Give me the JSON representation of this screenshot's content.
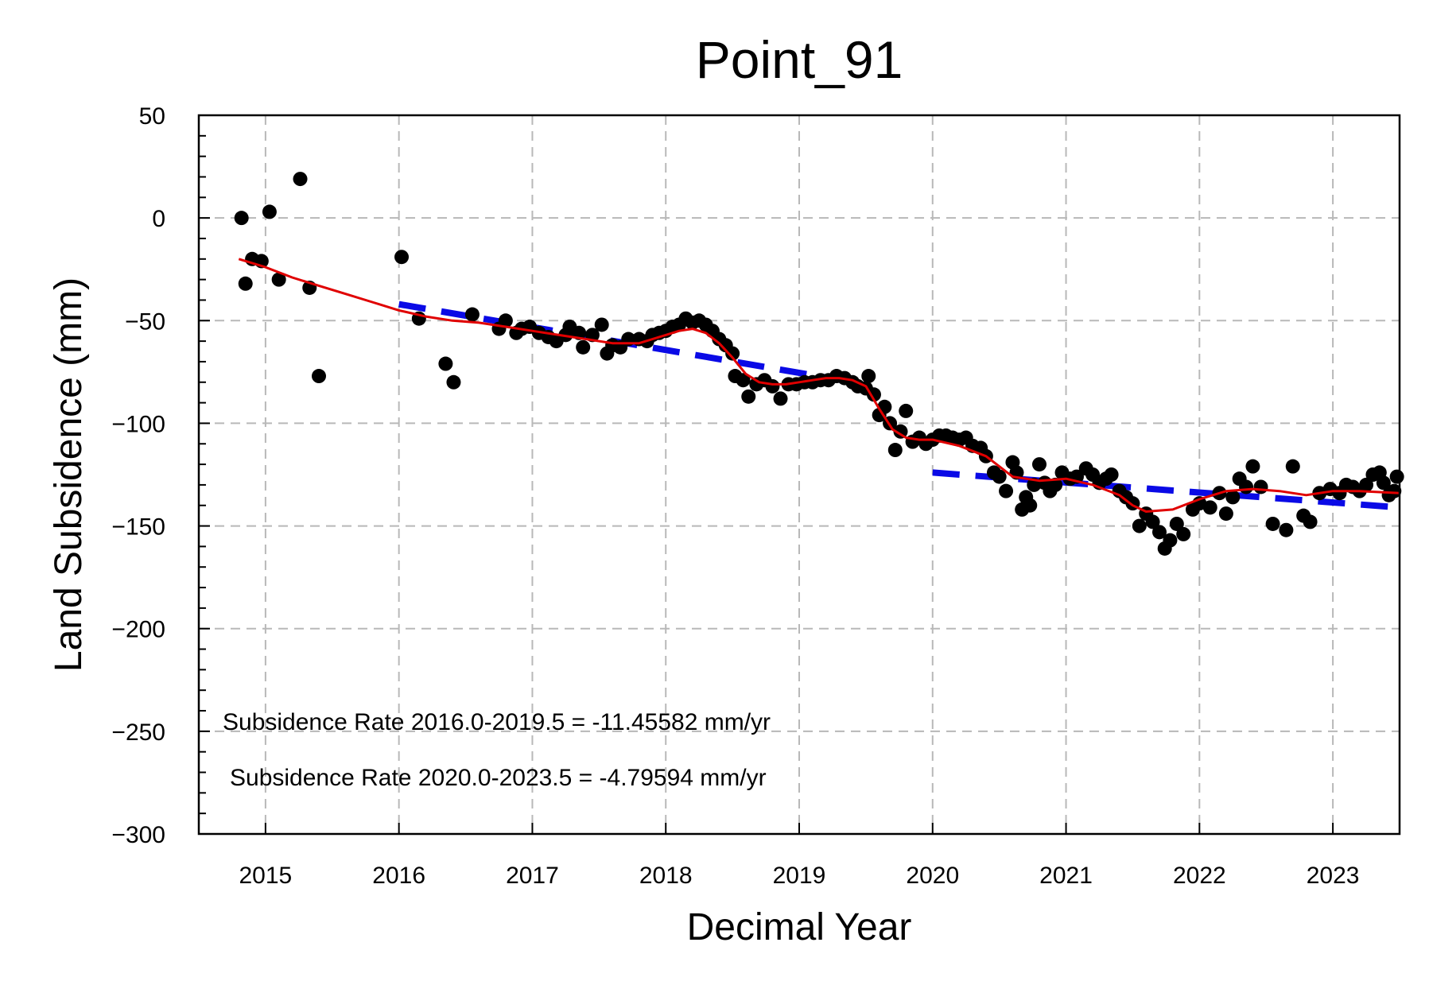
{
  "chart_data": {
    "type": "scatter",
    "title": "Point_91",
    "xlabel": "Decimal Year",
    "ylabel": "Land Subsidence (mm)",
    "xlim": [
      2014.5,
      2023.5
    ],
    "ylim": [
      -300,
      50
    ],
    "grid": true,
    "x_ticks": [
      2015,
      2016,
      2017,
      2018,
      2019,
      2020,
      2021,
      2022,
      2023
    ],
    "x_tick_labels": [
      "2015",
      "2016",
      "2017",
      "2018",
      "2019",
      "2020",
      "2021",
      "2022",
      "2023"
    ],
    "y_ticks": [
      50,
      0,
      -50,
      -100,
      -150,
      -200,
      -250,
      -300
    ],
    "y_tick_labels": [
      "50",
      "0",
      "−50",
      "−100",
      "−150",
      "−200",
      "−250",
      "−300"
    ],
    "annotations": [
      "Subsidence Rate 2016.0-2019.5 = -11.45582 mm/yr",
      "Subsidence Rate 2020.0-2023.5 = -4.79594 mm/yr"
    ],
    "colors": {
      "points": "#000000",
      "smooth": "#e00000",
      "trend": "#0a0ae6"
    },
    "points": [
      [
        2014.82,
        0
      ],
      [
        2014.85,
        -32
      ],
      [
        2014.9,
        -20
      ],
      [
        2014.97,
        -21
      ],
      [
        2015.03,
        3
      ],
      [
        2015.1,
        -30
      ],
      [
        2015.26,
        19
      ],
      [
        2015.33,
        -34
      ],
      [
        2015.4,
        -77
      ],
      [
        2016.02,
        -19
      ],
      [
        2016.15,
        -49
      ],
      [
        2016.35,
        -71
      ],
      [
        2016.41,
        -80
      ],
      [
        2016.55,
        -47
      ],
      [
        2016.75,
        -54
      ],
      [
        2016.8,
        -50
      ],
      [
        2016.88,
        -56
      ],
      [
        2016.92,
        -54
      ],
      [
        2016.98,
        -53
      ],
      [
        2017.05,
        -56
      ],
      [
        2017.12,
        -58
      ],
      [
        2017.18,
        -60
      ],
      [
        2017.25,
        -57
      ],
      [
        2017.28,
        -53
      ],
      [
        2017.35,
        -56
      ],
      [
        2017.38,
        -63
      ],
      [
        2017.45,
        -57
      ],
      [
        2017.52,
        -52
      ],
      [
        2017.56,
        -66
      ],
      [
        2017.6,
        -62
      ],
      [
        2017.66,
        -63
      ],
      [
        2017.72,
        -59
      ],
      [
        2017.8,
        -59
      ],
      [
        2017.86,
        -60
      ],
      [
        2017.9,
        -57
      ],
      [
        2017.95,
        -56
      ],
      [
        2018.0,
        -55
      ],
      [
        2018.05,
        -53
      ],
      [
        2018.1,
        -52
      ],
      [
        2018.15,
        -49
      ],
      [
        2018.2,
        -51
      ],
      [
        2018.25,
        -50
      ],
      [
        2018.3,
        -52
      ],
      [
        2018.35,
        -55
      ],
      [
        2018.4,
        -59
      ],
      [
        2018.45,
        -62
      ],
      [
        2018.5,
        -66
      ],
      [
        2018.52,
        -77
      ],
      [
        2018.58,
        -79
      ],
      [
        2018.62,
        -87
      ],
      [
        2018.68,
        -81
      ],
      [
        2018.74,
        -79
      ],
      [
        2018.8,
        -82
      ],
      [
        2018.86,
        -88
      ],
      [
        2018.92,
        -81
      ],
      [
        2018.98,
        -81
      ],
      [
        2019.04,
        -80
      ],
      [
        2019.1,
        -80
      ],
      [
        2019.16,
        -79
      ],
      [
        2019.22,
        -79
      ],
      [
        2019.28,
        -77
      ],
      [
        2019.34,
        -78
      ],
      [
        2019.4,
        -80
      ],
      [
        2019.44,
        -82
      ],
      [
        2019.5,
        -83
      ],
      [
        2019.52,
        -77
      ],
      [
        2019.56,
        -86
      ],
      [
        2019.6,
        -96
      ],
      [
        2019.64,
        -92
      ],
      [
        2019.68,
        -100
      ],
      [
        2019.72,
        -113
      ],
      [
        2019.76,
        -104
      ],
      [
        2019.8,
        -94
      ],
      [
        2019.85,
        -109
      ],
      [
        2019.9,
        -107
      ],
      [
        2019.95,
        -110
      ],
      [
        2020.0,
        -108
      ],
      [
        2020.05,
        -106
      ],
      [
        2020.1,
        -106
      ],
      [
        2020.15,
        -107
      ],
      [
        2020.2,
        -108
      ],
      [
        2020.25,
        -107
      ],
      [
        2020.3,
        -111
      ],
      [
        2020.36,
        -112
      ],
      [
        2020.4,
        -116
      ],
      [
        2020.46,
        -124
      ],
      [
        2020.5,
        -126
      ],
      [
        2020.55,
        -133
      ],
      [
        2020.6,
        -119
      ],
      [
        2020.63,
        -124
      ],
      [
        2020.67,
        -142
      ],
      [
        2020.7,
        -136
      ],
      [
        2020.73,
        -140
      ],
      [
        2020.76,
        -130
      ],
      [
        2020.8,
        -120
      ],
      [
        2020.84,
        -129
      ],
      [
        2020.88,
        -133
      ],
      [
        2020.92,
        -130
      ],
      [
        2020.97,
        -124
      ],
      [
        2021.03,
        -127
      ],
      [
        2021.08,
        -126
      ],
      [
        2021.15,
        -122
      ],
      [
        2021.2,
        -125
      ],
      [
        2021.25,
        -129
      ],
      [
        2021.3,
        -127
      ],
      [
        2021.34,
        -125
      ],
      [
        2021.4,
        -133
      ],
      [
        2021.45,
        -136
      ],
      [
        2021.5,
        -139
      ],
      [
        2021.55,
        -150
      ],
      [
        2021.6,
        -144
      ],
      [
        2021.65,
        -148
      ],
      [
        2021.7,
        -153
      ],
      [
        2021.74,
        -161
      ],
      [
        2021.78,
        -157
      ],
      [
        2021.83,
        -149
      ],
      [
        2021.88,
        -154
      ],
      [
        2021.95,
        -142
      ],
      [
        2022.0,
        -139
      ],
      [
        2022.08,
        -141
      ],
      [
        2022.15,
        -134
      ],
      [
        2022.2,
        -144
      ],
      [
        2022.25,
        -136
      ],
      [
        2022.3,
        -127
      ],
      [
        2022.35,
        -131
      ],
      [
        2022.4,
        -121
      ],
      [
        2022.46,
        -131
      ],
      [
        2022.55,
        -149
      ],
      [
        2022.65,
        -152
      ],
      [
        2022.7,
        -121
      ],
      [
        2022.78,
        -145
      ],
      [
        2022.83,
        -148
      ],
      [
        2022.9,
        -134
      ],
      [
        2022.98,
        -132
      ],
      [
        2023.05,
        -134
      ],
      [
        2023.1,
        -130
      ],
      [
        2023.15,
        -131
      ],
      [
        2023.2,
        -133
      ],
      [
        2023.25,
        -130
      ],
      [
        2023.3,
        -125
      ],
      [
        2023.35,
        -124
      ],
      [
        2023.38,
        -129
      ],
      [
        2023.42,
        -135
      ],
      [
        2023.46,
        -133
      ],
      [
        2023.48,
        -126
      ]
    ],
    "smoothed_line": {
      "x": [
        2014.8,
        2015.0,
        2015.2,
        2015.4,
        2015.6,
        2015.8,
        2016.0,
        2016.2,
        2016.4,
        2016.6,
        2016.8,
        2017.0,
        2017.2,
        2017.4,
        2017.6,
        2017.8,
        2018.0,
        2018.1,
        2018.2,
        2018.3,
        2018.4,
        2018.5,
        2018.6,
        2018.7,
        2018.8,
        2018.9,
        2019.0,
        2019.1,
        2019.2,
        2019.3,
        2019.4,
        2019.5,
        2019.6,
        2019.7,
        2019.8,
        2019.9,
        2020.0,
        2020.2,
        2020.4,
        2020.5,
        2020.6,
        2020.8,
        2021.0,
        2021.2,
        2021.4,
        2021.5,
        2021.6,
        2021.8,
        2022.0,
        2022.2,
        2022.4,
        2022.6,
        2022.8,
        2023.0,
        2023.2,
        2023.5
      ],
      "y": [
        -20,
        -24,
        -29,
        -33,
        -37,
        -41,
        -45,
        -48,
        -50,
        -51,
        -53,
        -55,
        -57,
        -59,
        -61,
        -61,
        -57,
        -55,
        -54,
        -56,
        -61,
        -68,
        -76,
        -80,
        -81,
        -81,
        -80,
        -79,
        -78,
        -78,
        -79,
        -82,
        -93,
        -103,
        -107,
        -108,
        -108,
        -111,
        -116,
        -121,
        -126,
        -128,
        -127,
        -130,
        -135,
        -140,
        -143,
        -142,
        -137,
        -133,
        -132,
        -133,
        -135,
        -133,
        -133,
        -134
      ]
    },
    "trend_lines": [
      {
        "x": [
          2016.0,
          2019.5
        ],
        "y": [
          -42,
          -81
        ]
      },
      {
        "x": [
          2020.0,
          2023.5
        ],
        "y": [
          -124,
          -141
        ]
      }
    ]
  }
}
